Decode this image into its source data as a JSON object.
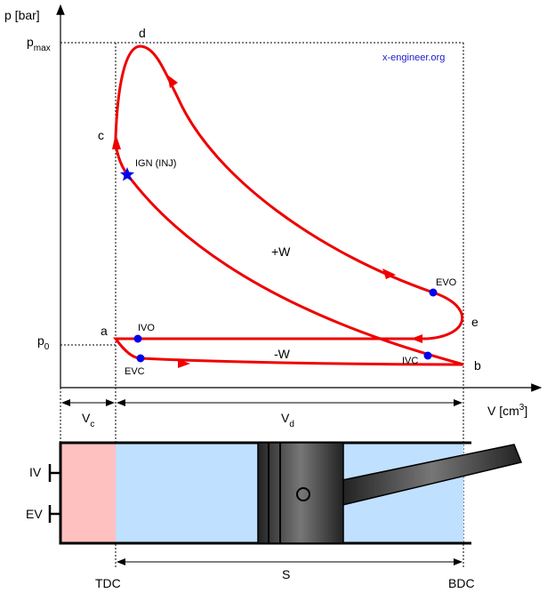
{
  "axes": {
    "y_label": "p [bar]",
    "x_label": {
      "text": "V [cm",
      "sup": "3",
      "end": "]"
    }
  },
  "levels": {
    "pmax": {
      "base": "p",
      "sub": "max"
    },
    "p0": {
      "base": "p",
      "sub": "0"
    }
  },
  "watermark": "x-engineer.org",
  "points": {
    "a": "a",
    "b": "b",
    "c": "c",
    "d": "d",
    "e": "e"
  },
  "events": {
    "ign": "IGN (INJ)",
    "evo": "EVO",
    "ivo": "IVO",
    "ivc": "IVC",
    "evc": "EVC"
  },
  "work": {
    "positive": "+W",
    "negative": "-W"
  },
  "volumes": {
    "vc": {
      "base": "V",
      "sub": "c"
    },
    "vd": {
      "base": "V",
      "sub": "d"
    }
  },
  "engine": {
    "iv": "IV",
    "ev": "EV",
    "stroke": "S",
    "tdc": "TDC",
    "bdc": "BDC"
  }
}
